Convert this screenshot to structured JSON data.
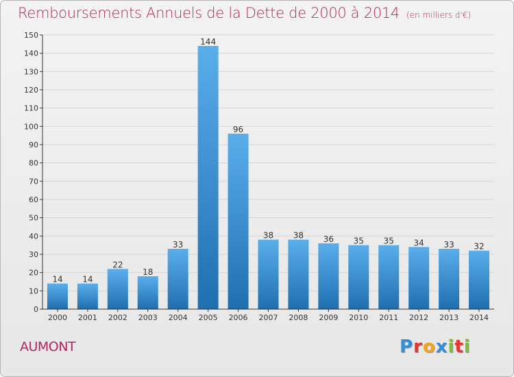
{
  "header": {
    "title": "Remboursements Annuels de la Dette de 2000 à 2014",
    "subtitle": "(en milliers d'€)"
  },
  "footer": {
    "commune": "AUMONT",
    "brand_letters": [
      {
        "ch": "P",
        "color": "#2f8fd8"
      },
      {
        "ch": "r",
        "color": "#e7352e"
      },
      {
        "ch": "o",
        "color": "#f2a31b"
      },
      {
        "ch": "x",
        "color": "#2f8fd8"
      },
      {
        "ch": "i",
        "color": "#7cbf35"
      },
      {
        "ch": "t",
        "color": "#e7352e"
      },
      {
        "ch": "i",
        "color": "#7cbf35"
      }
    ]
  },
  "colors": {
    "title": "#b4245e",
    "bar_top": "#5aaeea",
    "bar_bottom": "#1f6fb0",
    "axis": "#333333",
    "grid": "#d4d4d4"
  },
  "chart_data": {
    "type": "bar",
    "title": "Remboursements Annuels de la Dette de 2000 à 2014",
    "subtitle": "(en milliers d'€)",
    "xlabel": "",
    "ylabel": "",
    "categories": [
      "2000",
      "2001",
      "2002",
      "2003",
      "2004",
      "2005",
      "2006",
      "2007",
      "2008",
      "2009",
      "2010",
      "2011",
      "2012",
      "2013",
      "2014"
    ],
    "values": [
      14,
      14,
      22,
      18,
      33,
      144,
      96,
      38,
      38,
      36,
      35,
      35,
      34,
      33,
      32
    ],
    "ylim": [
      0,
      150
    ],
    "yticks": [
      0,
      10,
      20,
      30,
      40,
      50,
      60,
      70,
      80,
      90,
      100,
      110,
      120,
      130,
      140,
      150
    ],
    "grid": true,
    "data_labels": true
  }
}
